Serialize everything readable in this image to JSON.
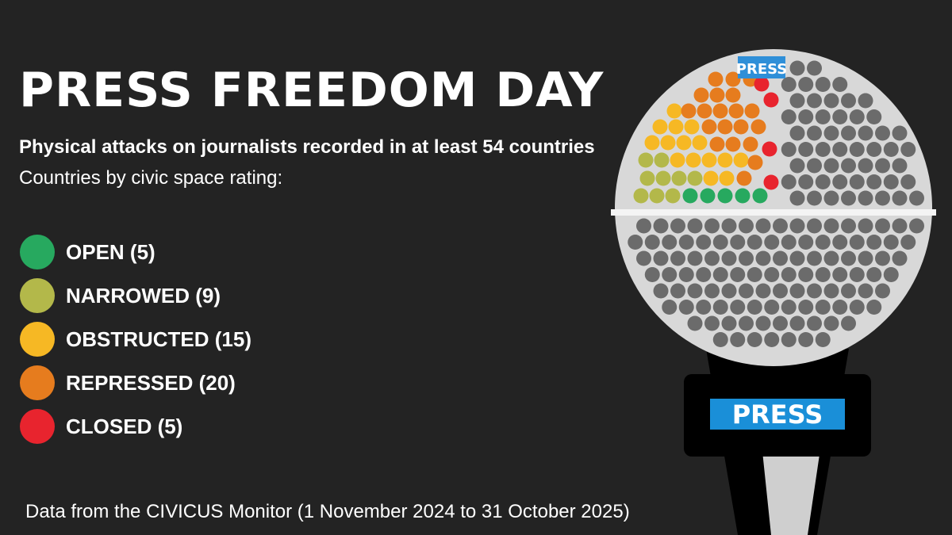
{
  "title": "PRESS FREEDOM DAY",
  "subtitle": "Physical attacks on journalists recorded in at least 54 countries",
  "intro": "Countries by civic space rating:",
  "legend": [
    {
      "label": "OPEN (5)",
      "count": 5,
      "color": "#27a95f"
    },
    {
      "label": "NARROWED (9)",
      "count": 9,
      "color": "#b3b84a"
    },
    {
      "label": "OBSTRUCTED (15)",
      "count": 15,
      "color": "#f6b824"
    },
    {
      "label": "REPRESSED (20)",
      "count": 20,
      "color": "#e67c1e"
    },
    {
      "label": "CLOSED (5)",
      "count": 5,
      "color": "#e8242e"
    }
  ],
  "source": "Data from the CIVICUS Monitor (1 November 2024 to 31 October 2025)",
  "microphone": {
    "top_label": "PRESS",
    "flag_label": "PRESS",
    "flag_color": "#1a8fd8",
    "other_dot_color": "#6b6b6b",
    "head_color": "#d8d8d8"
  }
}
